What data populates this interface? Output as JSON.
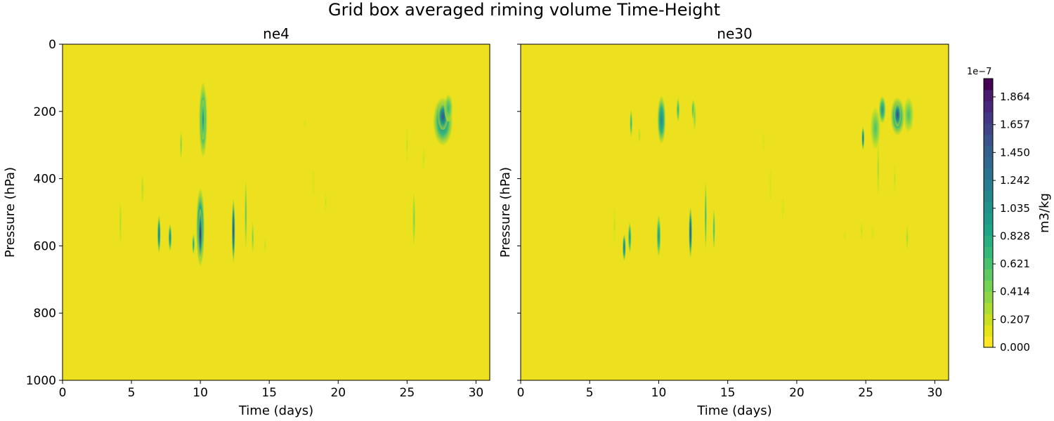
{
  "suptitle": "Grid box averaged riming volume Time-Height",
  "colors": {
    "background": "#ede11f",
    "axis": "#000000"
  },
  "colorbar": {
    "label": "m3/kg",
    "multiplier": "1e−7",
    "range": [
      0,
      2.0
    ],
    "ticks": [
      0.0,
      0.207,
      0.414,
      0.621,
      0.828,
      1.035,
      1.242,
      1.45,
      1.657,
      1.864
    ],
    "tick_labels": [
      "0.000",
      "0.207",
      "0.414",
      "0.621",
      "0.828",
      "1.035",
      "1.242",
      "1.450",
      "1.657",
      "1.864"
    ],
    "levels": [
      "#fde725",
      "#e5e419",
      "#c8e020",
      "#aadc32",
      "#8ed645",
      "#75d054",
      "#5ec962",
      "#48c16e",
      "#35b779",
      "#28ae80",
      "#20a486",
      "#1f9a8a",
      "#21918c",
      "#24878e",
      "#287d8e",
      "#2c728e",
      "#31688e",
      "#355f8d",
      "#3b528b",
      "#414487",
      "#453882",
      "#482878",
      "#471c6e",
      "#440154"
    ]
  },
  "chart_data": [
    {
      "type": "heatmap",
      "title": "ne4",
      "xlabel": "Time (days)",
      "ylabel": "Pressure (hPa)",
      "xlim": [
        0,
        31
      ],
      "ylim": [
        1000,
        0
      ],
      "xticks": [
        0,
        5,
        10,
        15,
        20,
        25,
        30
      ],
      "yticks": [
        0,
        200,
        400,
        600,
        800,
        1000
      ],
      "blobs": [
        {
          "t": 10.2,
          "p": 225,
          "dt": 0.3,
          "dp": 110,
          "v": 1.0
        },
        {
          "t": 10.2,
          "p": 225,
          "dt": 0.15,
          "dp": 60,
          "v": 1.35
        },
        {
          "t": 27.6,
          "p": 230,
          "dt": 0.7,
          "dp": 70,
          "v": 1.15
        },
        {
          "t": 27.6,
          "p": 215,
          "dt": 0.35,
          "dp": 40,
          "v": 1.55
        },
        {
          "t": 28.0,
          "p": 190,
          "dt": 0.3,
          "dp": 40,
          "v": 0.7
        },
        {
          "t": 10.0,
          "p": 545,
          "dt": 0.3,
          "dp": 115,
          "v": 1.3
        },
        {
          "t": 10.0,
          "p": 565,
          "dt": 0.15,
          "dp": 75,
          "v": 1.8
        },
        {
          "t": 12.4,
          "p": 555,
          "dt": 0.12,
          "dp": 95,
          "v": 1.6
        },
        {
          "t": 7.0,
          "p": 565,
          "dt": 0.12,
          "dp": 55,
          "v": 1.25
        },
        {
          "t": 7.8,
          "p": 575,
          "dt": 0.12,
          "dp": 40,
          "v": 1.2
        },
        {
          "t": 9.5,
          "p": 595,
          "dt": 0.1,
          "dp": 30,
          "v": 0.9
        },
        {
          "t": 13.3,
          "p": 505,
          "dt": 0.08,
          "dp": 100,
          "v": 0.6
        },
        {
          "t": 13.8,
          "p": 575,
          "dt": 0.08,
          "dp": 45,
          "v": 0.5
        },
        {
          "t": 8.6,
          "p": 300,
          "dt": 0.08,
          "dp": 40,
          "v": 0.45
        },
        {
          "t": 5.8,
          "p": 430,
          "dt": 0.08,
          "dp": 40,
          "v": 0.3
        },
        {
          "t": 4.2,
          "p": 530,
          "dt": 0.08,
          "dp": 60,
          "v": 0.3
        },
        {
          "t": 14.7,
          "p": 600,
          "dt": 0.06,
          "dp": 20,
          "v": 0.25
        },
        {
          "t": 25.5,
          "p": 520,
          "dt": 0.1,
          "dp": 75,
          "v": 0.45
        },
        {
          "t": 25.0,
          "p": 300,
          "dt": 0.06,
          "dp": 50,
          "v": 0.25
        },
        {
          "t": 26.2,
          "p": 340,
          "dt": 0.06,
          "dp": 30,
          "v": 0.25
        },
        {
          "t": 19.1,
          "p": 470,
          "dt": 0.06,
          "dp": 25,
          "v": 0.25
        },
        {
          "t": 18.2,
          "p": 410,
          "dt": 0.05,
          "dp": 35,
          "v": 0.22
        },
        {
          "t": 17.6,
          "p": 235,
          "dt": 0.05,
          "dp": 10,
          "v": 0.22
        }
      ]
    },
    {
      "type": "heatmap",
      "title": "ne30",
      "xlabel": "Time (days)",
      "ylabel": "Pressure (hPa)",
      "xlim": [
        0,
        31
      ],
      "ylim": [
        1000,
        0
      ],
      "xticks": [
        0,
        5,
        10,
        15,
        20,
        25,
        30
      ],
      "yticks": [
        0,
        200,
        400,
        600,
        800,
        1000
      ],
      "blobs": [
        {
          "t": 10.2,
          "p": 225,
          "dt": 0.3,
          "dp": 70,
          "v": 1.15
        },
        {
          "t": 11.4,
          "p": 195,
          "dt": 0.12,
          "dp": 35,
          "v": 0.8
        },
        {
          "t": 12.5,
          "p": 195,
          "dt": 0.12,
          "dp": 30,
          "v": 0.7
        },
        {
          "t": 12.6,
          "p": 215,
          "dt": 0.1,
          "dp": 40,
          "v": 0.45
        },
        {
          "t": 8.0,
          "p": 235,
          "dt": 0.1,
          "dp": 40,
          "v": 0.75
        },
        {
          "t": 8.6,
          "p": 270,
          "dt": 0.06,
          "dp": 20,
          "v": 0.3
        },
        {
          "t": 24.8,
          "p": 280,
          "dt": 0.1,
          "dp": 35,
          "v": 1.3
        },
        {
          "t": 25.7,
          "p": 250,
          "dt": 0.35,
          "dp": 60,
          "v": 0.6
        },
        {
          "t": 26.2,
          "p": 195,
          "dt": 0.25,
          "dp": 40,
          "v": 1.0
        },
        {
          "t": 27.3,
          "p": 215,
          "dt": 0.5,
          "dp": 55,
          "v": 1.2
        },
        {
          "t": 27.3,
          "p": 210,
          "dt": 0.25,
          "dp": 35,
          "v": 1.65
        },
        {
          "t": 28.1,
          "p": 210,
          "dt": 0.35,
          "dp": 50,
          "v": 0.6
        },
        {
          "t": 25.9,
          "p": 370,
          "dt": 0.06,
          "dp": 75,
          "v": 0.35
        },
        {
          "t": 27.1,
          "p": 400,
          "dt": 0.05,
          "dp": 40,
          "v": 0.25
        },
        {
          "t": 7.5,
          "p": 605,
          "dt": 0.12,
          "dp": 40,
          "v": 1.25
        },
        {
          "t": 7.9,
          "p": 575,
          "dt": 0.12,
          "dp": 45,
          "v": 1.05
        },
        {
          "t": 10.0,
          "p": 570,
          "dt": 0.15,
          "dp": 60,
          "v": 1.0
        },
        {
          "t": 12.3,
          "p": 560,
          "dt": 0.12,
          "dp": 75,
          "v": 1.55
        },
        {
          "t": 13.4,
          "p": 510,
          "dt": 0.08,
          "dp": 100,
          "v": 0.75
        },
        {
          "t": 14.0,
          "p": 550,
          "dt": 0.08,
          "dp": 60,
          "v": 0.7
        },
        {
          "t": 18.1,
          "p": 420,
          "dt": 0.05,
          "dp": 40,
          "v": 0.22
        },
        {
          "t": 19.0,
          "p": 490,
          "dt": 0.05,
          "dp": 30,
          "v": 0.22
        },
        {
          "t": 17.6,
          "p": 290,
          "dt": 0.05,
          "dp": 25,
          "v": 0.22
        },
        {
          "t": 6.8,
          "p": 540,
          "dt": 0.05,
          "dp": 50,
          "v": 0.25
        },
        {
          "t": 25.5,
          "p": 560,
          "dt": 0.05,
          "dp": 20,
          "v": 0.22
        },
        {
          "t": 23.5,
          "p": 570,
          "dt": 0.05,
          "dp": 10,
          "v": 0.22
        },
        {
          "t": 24.7,
          "p": 555,
          "dt": 0.05,
          "dp": 25,
          "v": 0.25
        },
        {
          "t": 28.0,
          "p": 575,
          "dt": 0.05,
          "dp": 35,
          "v": 0.35
        }
      ]
    }
  ]
}
